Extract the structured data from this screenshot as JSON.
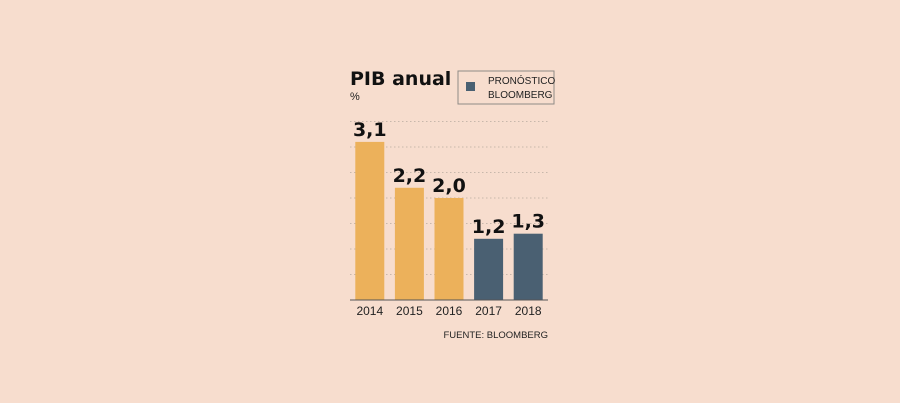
{
  "colors": {
    "background": "#F7DDCE",
    "actual": "#ECB15B",
    "forecast": "#4A6072",
    "grid": "#B8AAA0",
    "axis": "#555555"
  },
  "header": {
    "title": "PIB anual",
    "unit": "%"
  },
  "legend": {
    "line1": "PRONÓSTICO",
    "line2": "BLOOMBERG",
    "placement": "top-right"
  },
  "source": "FUENTE: BLOOMBERG",
  "chart_data": {
    "type": "bar",
    "title": "PIB anual",
    "ylabel": "%",
    "xlabel": "",
    "categories": [
      "2014",
      "2015",
      "2016",
      "2017",
      "2018"
    ],
    "values": [
      3.1,
      2.2,
      2.0,
      1.2,
      1.3
    ],
    "value_labels": [
      "3,1",
      "2,2",
      "2,0",
      "1,2",
      "1,3"
    ],
    "forecast": [
      false,
      false,
      false,
      true,
      true
    ],
    "ylim": [
      0,
      3.5
    ],
    "grid": true,
    "legend": [
      "PRONÓSTICO BLOOMBERG"
    ]
  }
}
